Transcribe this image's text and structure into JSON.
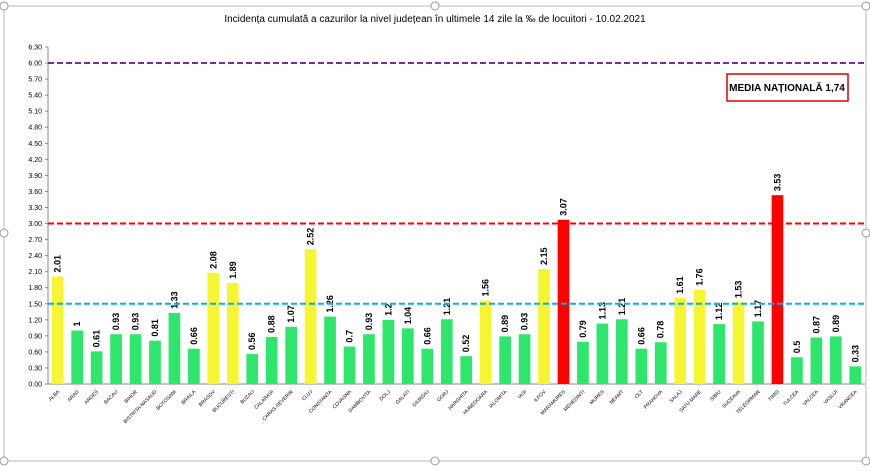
{
  "chart_data": {
    "type": "bar",
    "title": "Incidența cumulată a cazurilor la nivel județean în ultimele 14 zile la ‰ de locuitori - 10.02.2021",
    "categories": [
      "ALBA",
      "ARAD",
      "ARGES",
      "BACAU",
      "BIHOR",
      "BISTRITA-NASAUD",
      "BOTOSANI",
      "BRAILA",
      "BRASOV",
      "BUCURESTI",
      "BUZAU",
      "CALARASI",
      "CARAS-SEVERIN",
      "CLUJ",
      "CONSTANTA",
      "COVASNA",
      "DAMBOVITA",
      "DOLJ",
      "GALATI",
      "GIURGIU",
      "GORJ",
      "HARGHITA",
      "HUNEDOARA",
      "IALOMITA",
      "IASI",
      "ILFOV",
      "MARAMURES",
      "MEHEDINTI",
      "MURES",
      "NEAMT",
      "OLT",
      "PRAHOVA",
      "SALAJ",
      "SATU MARE",
      "SIBIU",
      "SUCEAVA",
      "TELEORMAN",
      "TIMIS",
      "TULCEA",
      "VALCEA",
      "VASLUI",
      "VRANCEA"
    ],
    "values": [
      2.01,
      1,
      0.61,
      0.93,
      0.93,
      0.81,
      1.33,
      0.66,
      2.08,
      1.89,
      0.56,
      0.88,
      1.07,
      2.52,
      1.26,
      0.7,
      0.93,
      1.2,
      1.04,
      0.66,
      1.21,
      0.52,
      1.56,
      0.89,
      0.93,
      2.15,
      3.07,
      0.79,
      1.13,
      1.21,
      0.66,
      0.78,
      1.61,
      1.76,
      1.12,
      1.53,
      1.17,
      3.53,
      0.5,
      0.87,
      0.89,
      0.33
    ],
    "colors": [
      "#f5f532",
      "#2ee66b",
      "#2ee66b",
      "#2ee66b",
      "#2ee66b",
      "#2ee66b",
      "#2ee66b",
      "#2ee66b",
      "#f5f532",
      "#f5f532",
      "#2ee66b",
      "#2ee66b",
      "#2ee66b",
      "#f5f532",
      "#2ee66b",
      "#2ee66b",
      "#2ee66b",
      "#2ee66b",
      "#2ee66b",
      "#2ee66b",
      "#2ee66b",
      "#2ee66b",
      "#f5f532",
      "#2ee66b",
      "#2ee66b",
      "#f5f532",
      "#ff0000",
      "#2ee66b",
      "#2ee66b",
      "#2ee66b",
      "#2ee66b",
      "#2ee66b",
      "#f5f532",
      "#f5f532",
      "#2ee66b",
      "#f5f532",
      "#2ee66b",
      "#ff0000",
      "#2ee66b",
      "#2ee66b",
      "#2ee66b",
      "#2ee66b"
    ],
    "ylim": [
      0,
      6.3
    ],
    "yticks": [
      {
        "value": 0,
        "label": "0.00"
      },
      {
        "value": 0.3,
        "label": "0.30"
      },
      {
        "value": 0.6,
        "label": "0.60"
      },
      {
        "value": 0.9,
        "label": "0.90"
      },
      {
        "value": 1.2,
        "label": "1.20"
      },
      {
        "value": 1.5,
        "label": "1.50"
      },
      {
        "value": 1.8,
        "label": "1.80"
      },
      {
        "value": 2.1,
        "label": "2.10"
      },
      {
        "value": 2.4,
        "label": "2.40"
      },
      {
        "value": 2.7,
        "label": "2.70"
      },
      {
        "value": 3,
        "label": "3.00"
      },
      {
        "value": 3.3,
        "label": "3.30"
      },
      {
        "value": 3.6,
        "label": "3.60"
      },
      {
        "value": 3.9,
        "label": "3.90"
      },
      {
        "value": 4.2,
        "label": "4.20"
      },
      {
        "value": 4.5,
        "label": "4.50"
      },
      {
        "value": 4.8,
        "label": "4.80"
      },
      {
        "value": 5.1,
        "label": "5.10"
      },
      {
        "value": 5.4,
        "label": "5.40"
      },
      {
        "value": 5.7,
        "label": "5.70"
      },
      {
        "value": 6,
        "label": "6.00"
      },
      {
        "value": 6.3,
        "label": "6.30"
      }
    ],
    "reference_lines": [
      {
        "value": 6,
        "color": "#7030a0"
      },
      {
        "value": 3,
        "color": "#ff0000"
      },
      {
        "value": 1.5,
        "color": "#00b0f0"
      }
    ],
    "annotation": "MEDIA NAȚIONALĂ 1,74"
  }
}
